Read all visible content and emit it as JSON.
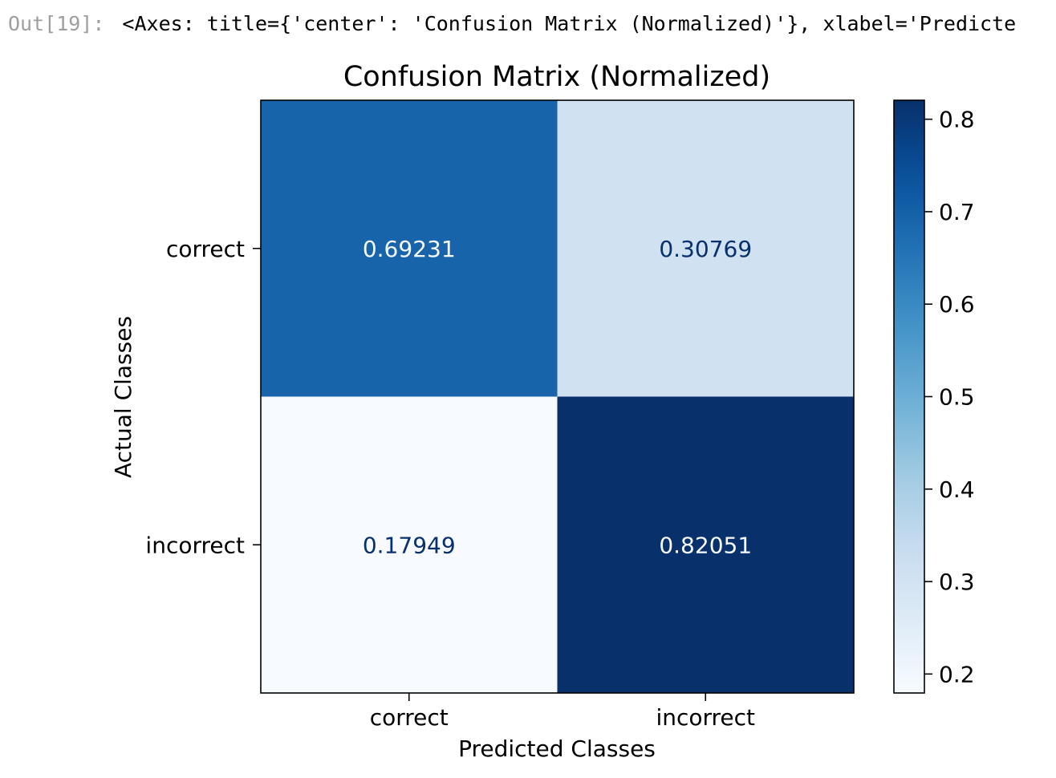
{
  "output_cell": {
    "prompt": "Out[19]:",
    "repr": "<Axes: title={'center': 'Confusion Matrix (Normalized)'}, xlabel='Predicte"
  },
  "chart_data": {
    "type": "heatmap",
    "title": "Confusion Matrix (Normalized)",
    "xlabel": "Predicted Classes",
    "ylabel": "Actual Classes",
    "x_categories": [
      "correct",
      "incorrect"
    ],
    "y_categories": [
      "correct",
      "incorrect"
    ],
    "values": [
      [
        0.69231,
        0.30769
      ],
      [
        0.17949,
        0.82051
      ]
    ],
    "cell_labels": [
      [
        "0.69231",
        "0.30769"
      ],
      [
        "0.17949",
        "0.82051"
      ]
    ],
    "colormap": "Blues",
    "colorbar": {
      "vmin": 0.17949,
      "vmax": 0.82051,
      "ticks": [
        0.2,
        0.3,
        0.4,
        0.5,
        0.6,
        0.7,
        0.8
      ],
      "tick_labels": [
        "0.2",
        "0.3",
        "0.4",
        "0.5",
        "0.6",
        "0.7",
        "0.8"
      ]
    },
    "grid": false,
    "text_colors": {
      "on_dark": "#f7fbff",
      "on_light": "#08306b"
    }
  }
}
